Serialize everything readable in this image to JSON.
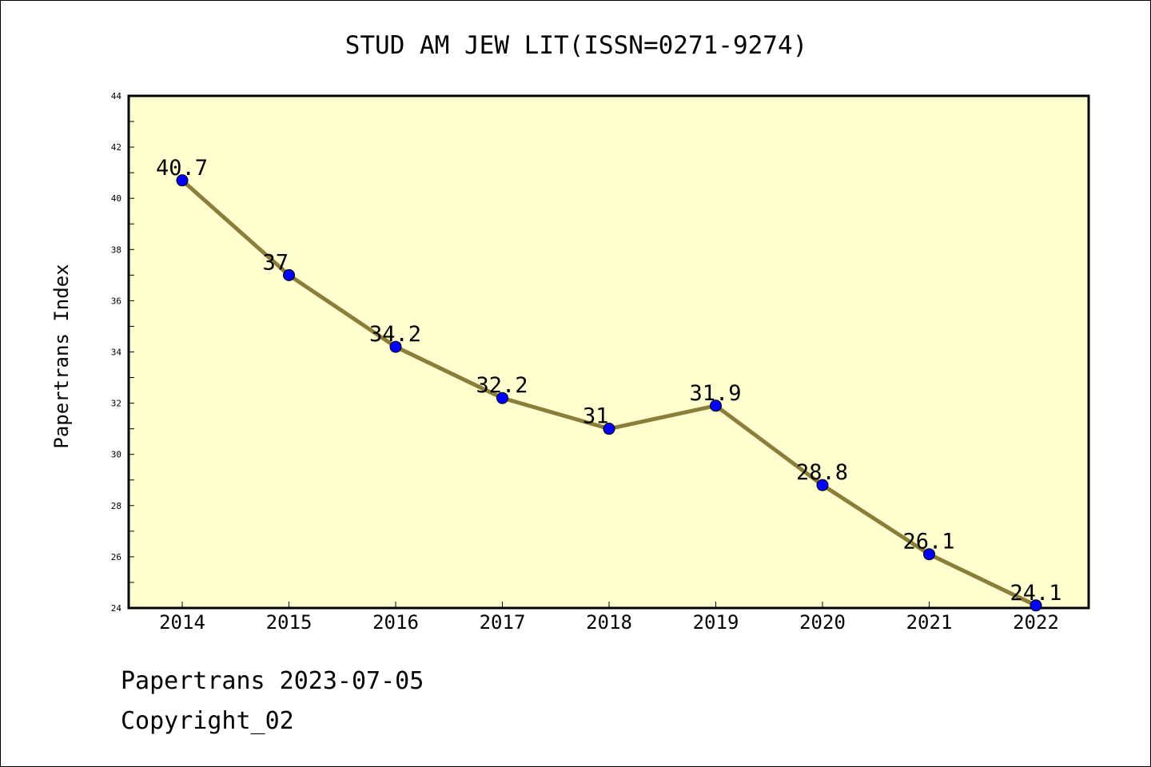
{
  "chart_data": {
    "type": "line",
    "title": "STUD AM JEW LIT(ISSN=0271-9274)",
    "xlabel": "",
    "ylabel": "Papertrans Index",
    "categories": [
      "2014",
      "2015",
      "2016",
      "2017",
      "2018",
      "2019",
      "2020",
      "2021",
      "2022"
    ],
    "series": [
      {
        "name": "Papertrans Index",
        "values": [
          40.7,
          37,
          34.2,
          32.2,
          31,
          31.9,
          28.8,
          26.1,
          24.1
        ],
        "labels": [
          "40.7",
          "37",
          "34.2",
          "32.2",
          "31",
          "31.9",
          "28.8",
          "26.1",
          "24.1"
        ]
      }
    ],
    "ylim": [
      24,
      44
    ],
    "yticks": [
      "24",
      "26",
      "28",
      "30",
      "32",
      "34",
      "36",
      "38",
      "40",
      "42",
      "44"
    ],
    "grid": false,
    "colors": {
      "plot_background": "#ffffd0",
      "line": "#8b7d3a",
      "marker": "#0000ff",
      "axis": "#000000"
    }
  },
  "footer": {
    "date_line": "Papertrans 2023-07-05",
    "copyright": "Copyright_02"
  }
}
